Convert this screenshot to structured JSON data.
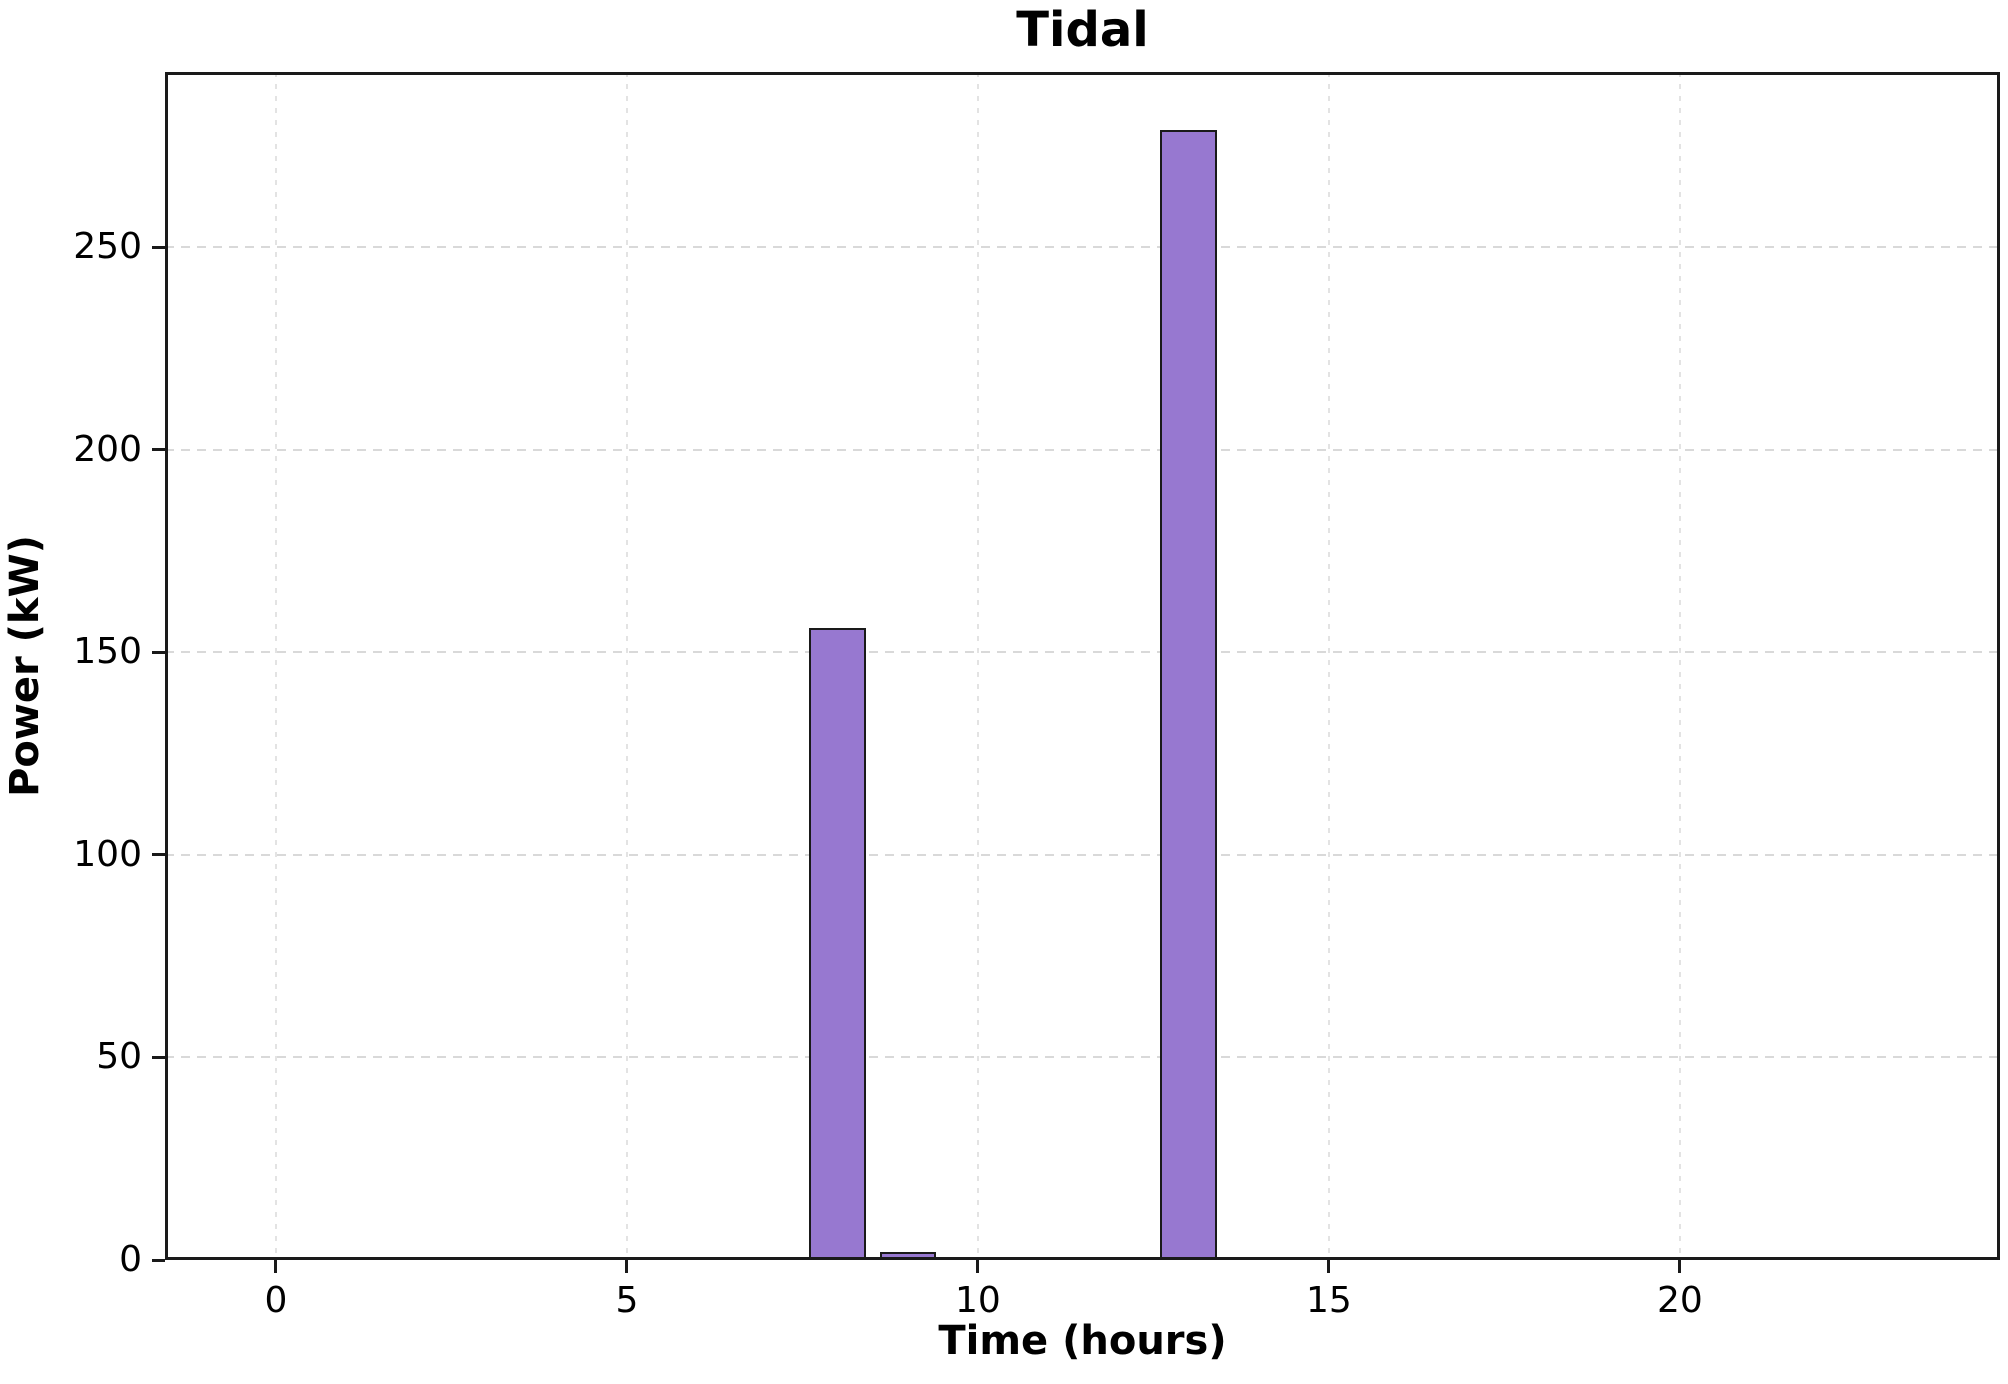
{
  "chart_data": {
    "type": "bar",
    "title": "Tidal",
    "xlabel": "Time (hours)",
    "ylabel": "Power (kW)",
    "x": [
      0,
      1,
      2,
      3,
      4,
      5,
      6,
      7,
      8,
      9,
      10,
      11,
      12,
      13,
      14,
      15,
      16,
      17,
      18,
      19,
      20,
      21,
      22,
      23
    ],
    "values": [
      0,
      0,
      0,
      0,
      0,
      0,
      0,
      0,
      156,
      2,
      0,
      0,
      0,
      279,
      0,
      0,
      0,
      0,
      0,
      0,
      0,
      0,
      0,
      0
    ],
    "bar_width": 0.8,
    "xlim": [
      -1.58,
      24.56
    ],
    "ylim": [
      0,
      293.3
    ],
    "xticks": [
      0,
      5,
      10,
      15,
      20
    ],
    "yticks": [
      0,
      50,
      100,
      150,
      200,
      250
    ],
    "grid": true,
    "grid_style": "dashed",
    "legend": "none",
    "colors": {
      "bar_fill": "#9778D0",
      "bar_edge": "#1a1a1a",
      "grid": "#d9d9d9",
      "spine": "#1a1a1a",
      "text": "#000000",
      "background": "#ffffff"
    }
  }
}
